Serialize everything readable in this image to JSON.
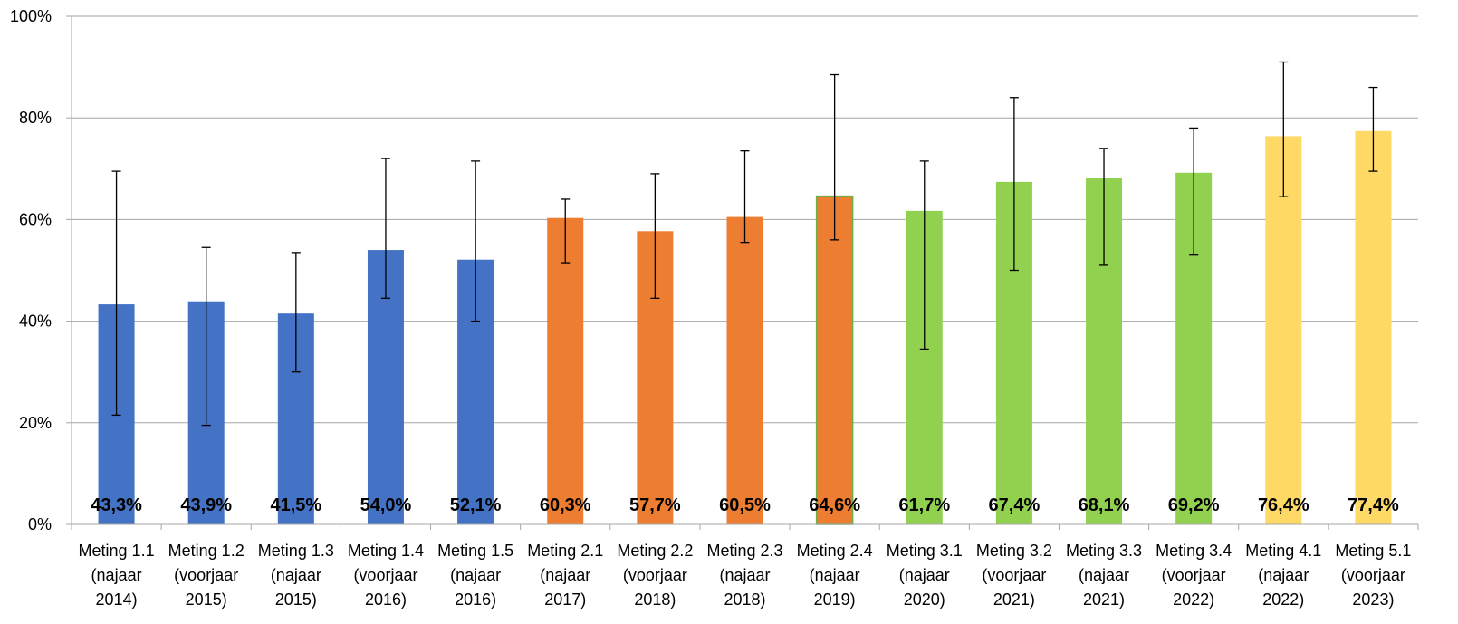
{
  "chart_data": {
    "type": "bar",
    "title": "",
    "xlabel": "",
    "ylabel": "",
    "ylim": [
      0,
      100
    ],
    "y_ticks": [
      "0%",
      "20%",
      "40%",
      "60%",
      "80%",
      "100%"
    ],
    "y_tick_values": [
      0,
      20,
      40,
      60,
      80,
      100
    ],
    "grid": true,
    "categories": [
      [
        "Meting 1.1",
        "(najaar",
        "2014)"
      ],
      [
        "Meting 1.2",
        "(voorjaar",
        "2015)"
      ],
      [
        "Meting 1.3",
        "(najaar",
        "2015)"
      ],
      [
        "Meting 1.4",
        "(voorjaar",
        "2016)"
      ],
      [
        "Meting 1.5",
        "(najaar",
        "2016)"
      ],
      [
        "Meting 2.1",
        "(najaar",
        "2017)"
      ],
      [
        "Meting 2.2",
        "(voorjaar",
        "2018)"
      ],
      [
        "Meting 2.3",
        "(najaar",
        "2018)"
      ],
      [
        "Meting 2.4",
        "(najaar",
        "2019)"
      ],
      [
        "Meting 3.1",
        "(najaar",
        "2020)"
      ],
      [
        "Meting 3.2",
        "(voorjaar",
        "2021)"
      ],
      [
        "Meting 3.3",
        "(najaar",
        "2021)"
      ],
      [
        "Meting 3.4",
        "(voorjaar",
        "2022)"
      ],
      [
        "Meting 4.1",
        "(najaar",
        "2022)"
      ],
      [
        "Meting 5.1",
        "(voorjaar",
        "2023)"
      ]
    ],
    "values": [
      43.3,
      43.9,
      41.5,
      54.0,
      52.1,
      60.3,
      57.7,
      60.5,
      64.6,
      61.7,
      67.4,
      68.1,
      69.2,
      76.4,
      77.4
    ],
    "value_labels": [
      "43,3%",
      "43,9%",
      "41,5%",
      "54,0%",
      "52,1%",
      "60,3%",
      "57,7%",
      "60,5%",
      "64,6%",
      "61,7%",
      "67,4%",
      "68,1%",
      "69,2%",
      "76,4%",
      "77,4%"
    ],
    "error_low": [
      21.5,
      19.5,
      30.0,
      44.5,
      40.0,
      51.5,
      44.5,
      55.5,
      56.0,
      34.5,
      50.0,
      51.0,
      53.0,
      64.5,
      69.5
    ],
    "error_high": [
      69.5,
      54.5,
      53.5,
      72.0,
      71.5,
      64.0,
      69.0,
      73.5,
      88.5,
      71.5,
      84.0,
      74.0,
      78.0,
      91.0,
      86.0
    ],
    "colors": [
      "#4472C4",
      "#4472C4",
      "#4472C4",
      "#4472C4",
      "#4472C4",
      "#ED7D31",
      "#ED7D31",
      "#ED7D31",
      "#ED7D31",
      "#92D050",
      "#92D050",
      "#92D050",
      "#92D050",
      "#FFD966",
      "#FFD966"
    ],
    "border_colors": [
      "",
      "",
      "",
      "",
      "",
      "",
      "",
      "",
      "#70AD47",
      "",
      "",
      "",
      "",
      "",
      ""
    ]
  }
}
